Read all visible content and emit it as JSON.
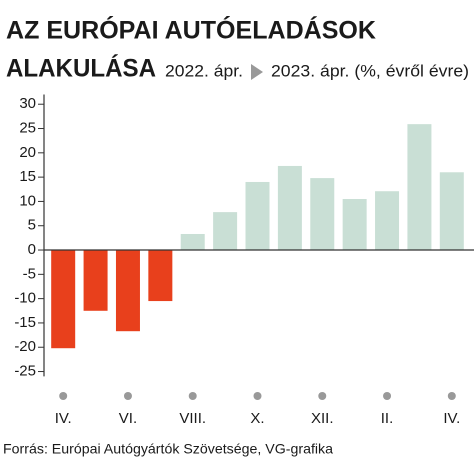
{
  "chart_data": {
    "type": "bar",
    "title": "AZ EURÓPAI AUTÓELADÁSOK",
    "title_line2": "ALAKULÁSA",
    "subtitle_start": "2022. ápr.",
    "subtitle_end": "2023. ápr. (%, évről évre)",
    "source": "Forrás: Európai Autógyártók Szövetsége, VG-grafika",
    "categories": [
      "IV.",
      null,
      "VI.",
      null,
      "VIII.",
      null,
      "X.",
      null,
      "XII.",
      null,
      "II.",
      null,
      "IV."
    ],
    "values": [
      -20.2,
      -12.5,
      -16.7,
      -10.5,
      3.3,
      7.8,
      14,
      17.3,
      14.8,
      10.5,
      12.1,
      25.9,
      16
    ],
    "color_negative": "#e8401c",
    "color_positive": "#c9dfd5",
    "ylim": [
      -26,
      32
    ],
    "yticks": [
      30,
      25,
      20,
      15,
      10,
      5,
      0,
      -5,
      -10,
      -15,
      -20,
      -25
    ],
    "grid": false
  }
}
